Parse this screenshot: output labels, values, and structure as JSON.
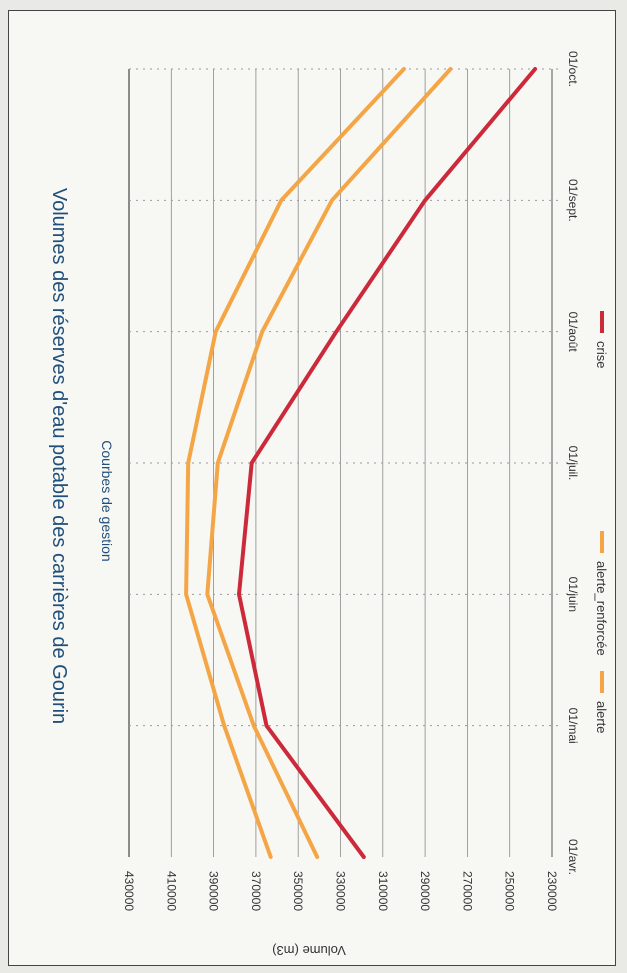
{
  "chart_data": {
    "type": "line",
    "title": "Volumes des réserves d'eau potable des carrières de Gourin",
    "subtitle": "Courbes de gestion",
    "ylabel": "Volume (m3)",
    "xlabel": "",
    "categories": [
      "01/avr.",
      "01/mai",
      "01/juin",
      "01/juil.",
      "01/août",
      "01/sept.",
      "01/oct."
    ],
    "yticks": [
      "430000",
      "410000",
      "390000",
      "370000",
      "350000",
      "330000",
      "310000",
      "290000",
      "270000",
      "250000",
      "230000"
    ],
    "ylim": [
      230000,
      430000
    ],
    "grid": true,
    "legend_position": "bottom",
    "series": [
      {
        "name": "alerte",
        "color": "#f4a646",
        "values": [
          363000,
          385000,
          403000,
          402000,
          389000,
          358000,
          300000
        ]
      },
      {
        "name": "alerte_renforcée",
        "color": "#f4a646",
        "values": [
          341000,
          371000,
          393000,
          388000,
          367000,
          334000,
          278000
        ]
      },
      {
        "name": "crise",
        "color": "#cc2a3a",
        "values": [
          319000,
          365000,
          378000,
          372000,
          332000,
          290000,
          238000
        ]
      }
    ]
  }
}
